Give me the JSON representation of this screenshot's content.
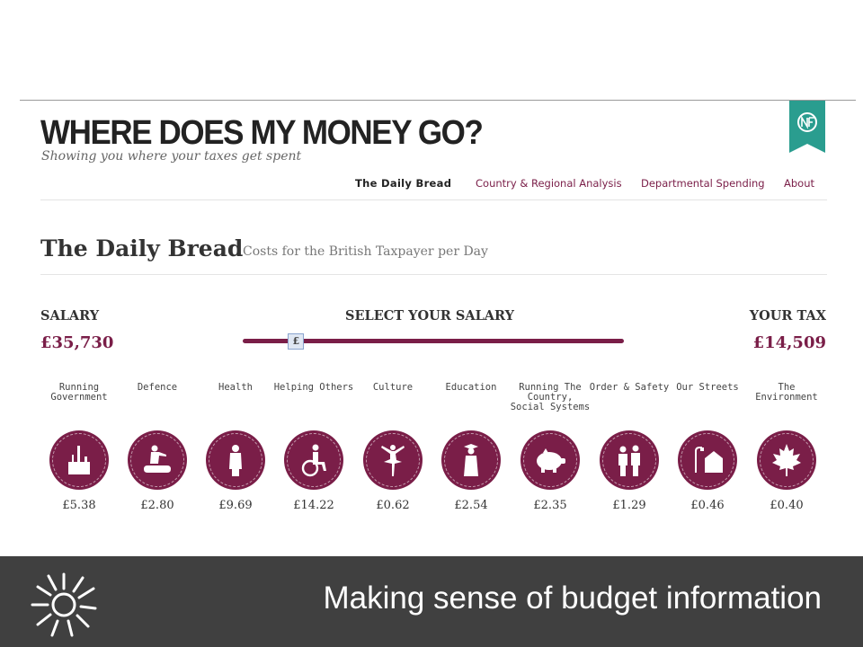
{
  "site": {
    "title": "WHERE DOES MY MONEY GO?",
    "tagline": "Showing you where your taxes get spent",
    "badge_icon": "okfn-ribbon-icon",
    "accent_color": "#7a1e48",
    "badge_color": "#2a9d8f"
  },
  "nav": {
    "items": [
      {
        "label": "The Daily Bread",
        "active": true
      },
      {
        "label": "Country & Regional Analysis",
        "active": false
      },
      {
        "label": "Departmental Spending",
        "active": false
      },
      {
        "label": "About",
        "active": false
      }
    ]
  },
  "section": {
    "title": "The Daily Bread",
    "subtitle": "Costs for the British Taxpayer per Day"
  },
  "salary": {
    "label": "SALARY",
    "value": "£35,730",
    "select_label": "SELECT YOUR SALARY",
    "handle_symbol": "£",
    "slider_fraction": 0.14
  },
  "tax": {
    "label": "YOUR TAX",
    "value": "£14,509"
  },
  "categories": [
    {
      "label": "Running Government",
      "amount": "£5.38",
      "icon": "parliament-icon"
    },
    {
      "label": "Defence",
      "amount": "£2.80",
      "icon": "soldier-tank-icon"
    },
    {
      "label": "Health",
      "amount": "£9.69",
      "icon": "nurse-icon"
    },
    {
      "label": "Helping Others",
      "amount": "£14.22",
      "icon": "wheelchair-icon"
    },
    {
      "label": "Culture",
      "amount": "£0.62",
      "icon": "ballerina-icon"
    },
    {
      "label": "Education",
      "amount": "£2.54",
      "icon": "graduate-icon"
    },
    {
      "label": "Running The Country, Social Systems",
      "amount": "£2.35",
      "icon": "piggy-bank-icon"
    },
    {
      "label": "Order & Safety",
      "amount": "£1.29",
      "icon": "police-icon"
    },
    {
      "label": "Our Streets",
      "amount": "£0.46",
      "icon": "house-streetlight-icon"
    },
    {
      "label": "The Environment",
      "amount": "£0.40",
      "icon": "maple-leaf-icon"
    }
  ],
  "footer": {
    "caption": "Making sense of budget information",
    "logo_icon": "sunburst-logo-icon"
  }
}
